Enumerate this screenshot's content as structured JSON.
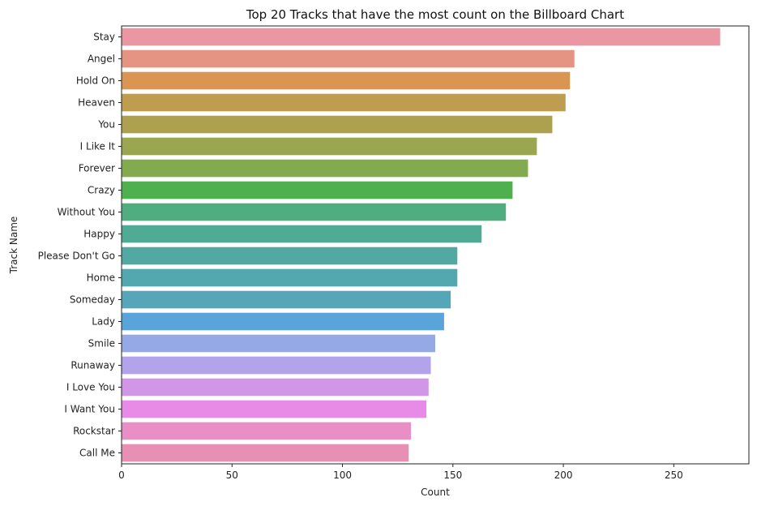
{
  "chart_data": {
    "type": "bar",
    "orientation": "horizontal",
    "title": "Top 20 Tracks that have the most count on the Billboard Chart",
    "xlabel": "Count",
    "ylabel": "Track Name",
    "xlim": [
      0,
      284
    ],
    "xticks": [
      0,
      50,
      100,
      150,
      200,
      250
    ],
    "grid": false,
    "categories": [
      "Stay",
      "Angel",
      "Hold On",
      "Heaven",
      "You",
      "I Like It",
      "Forever",
      "Crazy",
      "Without You",
      "Happy",
      "Please Don't Go",
      "Home",
      "Someday",
      "Lady",
      "Smile",
      "Runaway",
      "I Love You",
      "I Want You",
      "Rockstar",
      "Call Me"
    ],
    "values": [
      271,
      205,
      203,
      201,
      195,
      188,
      184,
      177,
      174,
      163,
      152,
      152,
      149,
      146,
      142,
      140,
      139,
      138,
      131,
      130
    ],
    "colors": [
      "#EA96A3",
      "#E59484",
      "#D99551",
      "#BE9C50",
      "#ADA150",
      "#9BA650",
      "#84AA4F",
      "#4EB04E",
      "#4FAD80",
      "#50AB94",
      "#51A9A2",
      "#52A8AD",
      "#54A6B8",
      "#59A4D8",
      "#95A9E6",
      "#B3A3EA",
      "#D296E9",
      "#E78BE7",
      "#E98FC6",
      "#E790B3"
    ]
  }
}
